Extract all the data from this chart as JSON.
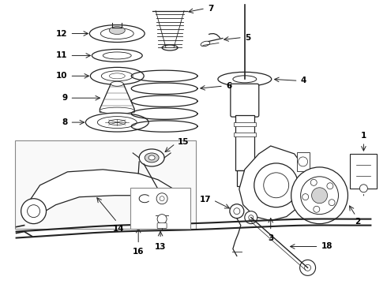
{
  "bg_color": "#ffffff",
  "line_color": "#222222",
  "label_color": "#000000",
  "fig_width": 4.9,
  "fig_height": 3.6,
  "dpi": 100
}
